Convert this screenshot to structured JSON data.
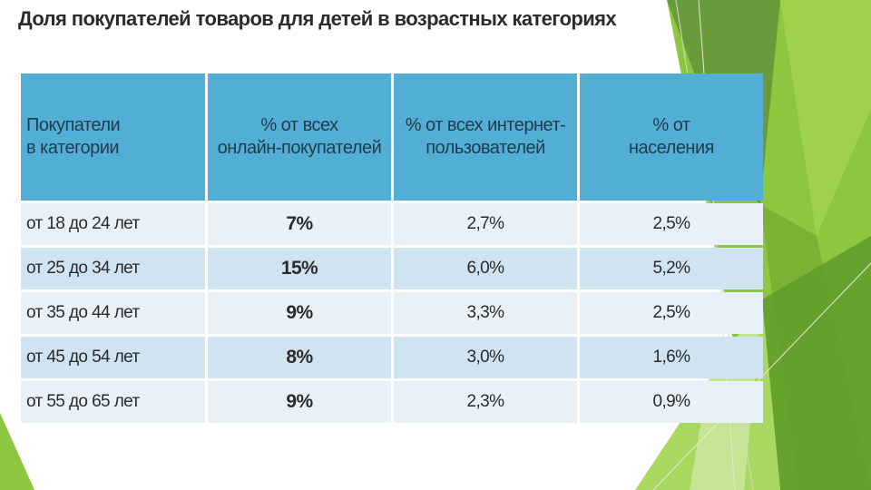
{
  "title": "Доля покупателей товаров для детей в возрастных категориях",
  "table": {
    "headers": [
      [
        "Покупатели",
        "в категории"
      ],
      [
        "% от всех",
        "онлайн-покупателей"
      ],
      [
        "% от всех интернет-",
        "пользователей"
      ],
      [
        "% от",
        "населения"
      ]
    ],
    "rows": [
      {
        "category": "от 18 до 24 лет",
        "online": "7%",
        "internet": "2,7%",
        "population": "2,5%"
      },
      {
        "category": "от 25 до 34 лет",
        "online": "15%",
        "internet": "6,0%",
        "population": "5,2%"
      },
      {
        "category": "от 35 до 44 лет",
        "online": "9%",
        "internet": "3,3%",
        "population": "2,5%"
      },
      {
        "category": "от 45 до 54 лет",
        "online": "8%",
        "internet": "3,0%",
        "population": "1,6%"
      },
      {
        "category": "от 55 до 65 лет",
        "online": "9%",
        "internet": "2,3%",
        "population": "0,9%"
      }
    ]
  },
  "colors": {
    "header_bg": "#52aed4",
    "row_light": "#e8f1f8",
    "row_dark": "#d0e3f1",
    "accent_green": "#8dc63f"
  }
}
